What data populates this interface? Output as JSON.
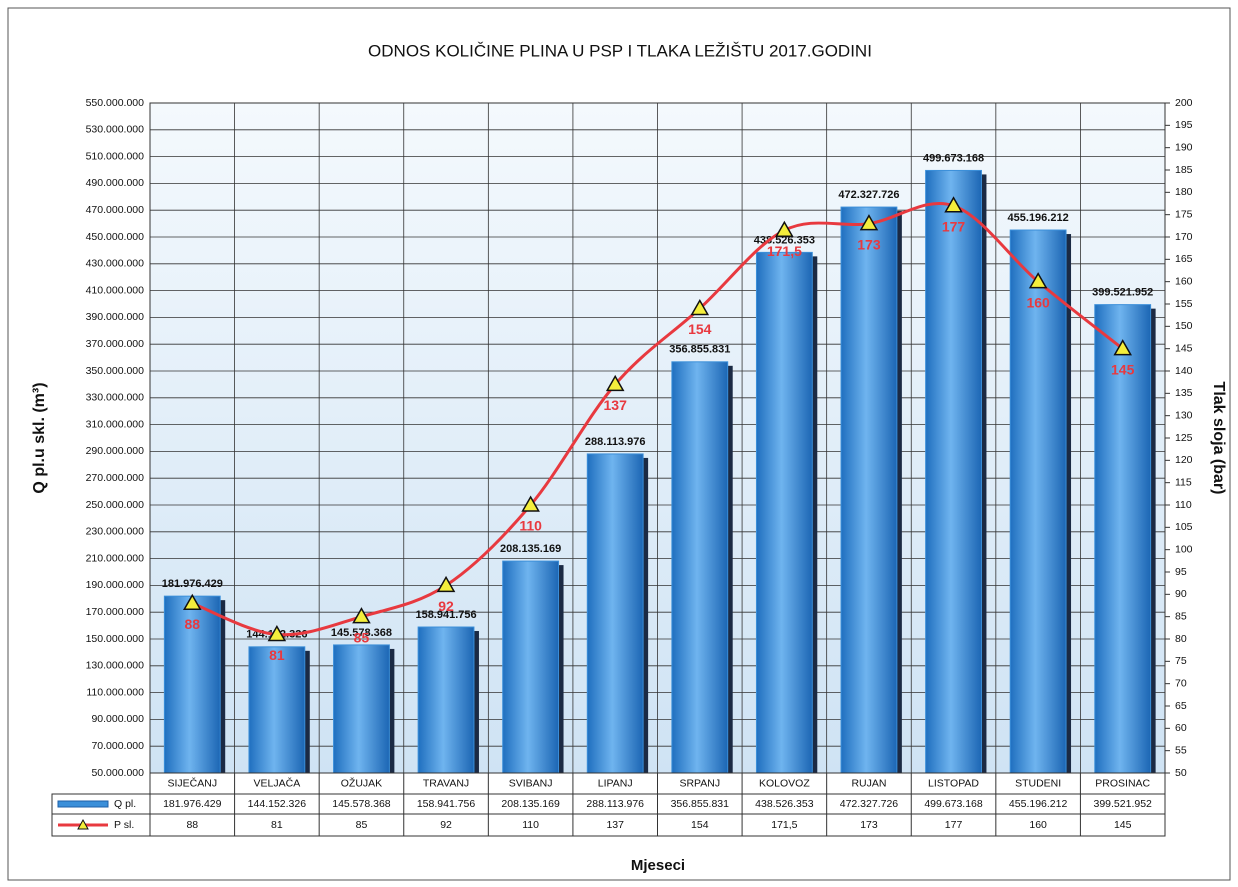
{
  "chart_data": {
    "type": "bar-line",
    "title": "ODNOS KOLIČINE PLINA U PSP I TLAKA LEŽIŠTU 2017.GODINI",
    "ylabel": "Q pl.u skl. (m³)",
    "y2label": "Tlak sloja (bar)",
    "xlabel": "Mjeseci",
    "categories": [
      "SIJEČANJ",
      "VELJAČA",
      "OŽUJAK",
      "TRAVANJ",
      "SVIBANJ",
      "LIPANJ",
      "SRPANJ",
      "KOLOVOZ",
      "RUJAN",
      "LISTOPAD",
      "STUDENI",
      "PROSINAC"
    ],
    "series": [
      {
        "name": "Q pl.",
        "type": "bar",
        "color": "#3b8fd9",
        "values": [
          181976429,
          144152326,
          145578368,
          158941756,
          208135169,
          288113976,
          356855831,
          438526353,
          472327726,
          499673168,
          455196212,
          399521952
        ],
        "value_labels": [
          "181.976.429",
          "144.152.326",
          "145.578.368",
          "158.941.756",
          "208.135.169",
          "288.113.976",
          "356.855.831",
          "438.526.353",
          "472.327.726",
          "499.673.168",
          "455.196.212",
          "399.521.952"
        ]
      },
      {
        "name": "P sl.",
        "type": "line",
        "axis": "y2",
        "color": "#e8393f",
        "marker_color": "#f4ee3c",
        "values": [
          88,
          81,
          85,
          92,
          110,
          137,
          154,
          171.5,
          173,
          177,
          160,
          145
        ],
        "value_labels": [
          "88",
          "81",
          "85",
          "92",
          "110",
          "137",
          "154",
          "171,5",
          "173",
          "177",
          "160",
          "145"
        ]
      }
    ],
    "ylim": [
      50000000,
      550000000
    ],
    "yticks": [
      {
        "value": 50000000,
        "label": "50.000.000"
      },
      {
        "value": 70000000,
        "label": "70.000.000"
      },
      {
        "value": 90000000,
        "label": "90.000.000"
      },
      {
        "value": 110000000,
        "label": "110.000.000"
      },
      {
        "value": 130000000,
        "label": "130.000.000"
      },
      {
        "value": 150000000,
        "label": "150.000.000"
      },
      {
        "value": 170000000,
        "label": "170.000.000"
      },
      {
        "value": 190000000,
        "label": "190.000.000"
      },
      {
        "value": 210000000,
        "label": "210.000.000"
      },
      {
        "value": 230000000,
        "label": "230.000.000"
      },
      {
        "value": 250000000,
        "label": "250.000.000"
      },
      {
        "value": 270000000,
        "label": "270.000.000"
      },
      {
        "value": 290000000,
        "label": "290.000.000"
      },
      {
        "value": 310000000,
        "label": "310.000.000"
      },
      {
        "value": 330000000,
        "label": "330.000.000"
      },
      {
        "value": 350000000,
        "label": "350.000.000"
      },
      {
        "value": 370000000,
        "label": "370.000.000"
      },
      {
        "value": 390000000,
        "label": "390.000.000"
      },
      {
        "value": 410000000,
        "label": "410.000.000"
      },
      {
        "value": 430000000,
        "label": "430.000.000"
      },
      {
        "value": 450000000,
        "label": "450.000.000"
      },
      {
        "value": 470000000,
        "label": "470.000.000"
      },
      {
        "value": 490000000,
        "label": "490.000.000"
      },
      {
        "value": 510000000,
        "label": "510.000.000"
      },
      {
        "value": 530000000,
        "label": "530.000.000"
      },
      {
        "value": 550000000,
        "label": "550.000.000"
      }
    ],
    "y2lim": [
      50,
      200
    ],
    "y2ticks": [
      50,
      55,
      60,
      65,
      70,
      75,
      80,
      85,
      90,
      95,
      100,
      105,
      110,
      115,
      120,
      125,
      130,
      135,
      140,
      145,
      150,
      155,
      160,
      165,
      170,
      175,
      180,
      185,
      190,
      195,
      200
    ],
    "grid": true
  }
}
